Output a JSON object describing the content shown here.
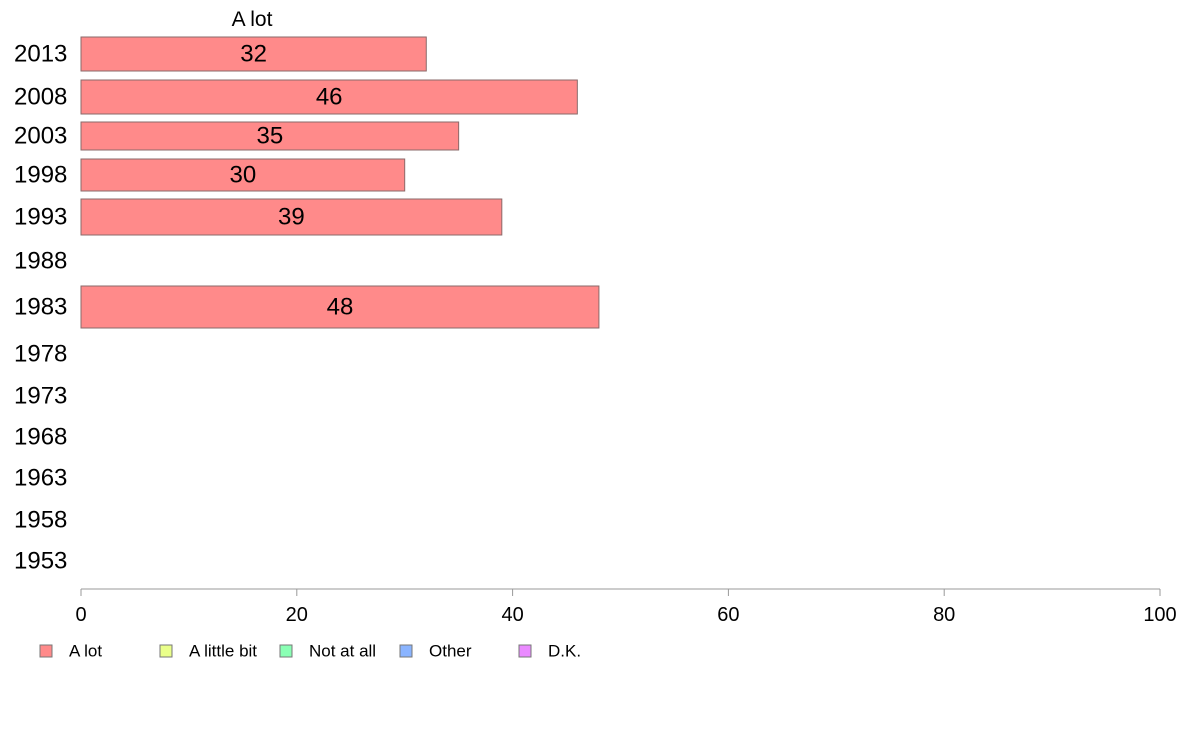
{
  "chart_data": {
    "type": "bar",
    "orientation": "horizontal",
    "column_title": "A lot",
    "categories": [
      "2013",
      "2008",
      "2003",
      "1998",
      "1993",
      "1988",
      "1983",
      "1978",
      "1973",
      "1968",
      "1963",
      "1958",
      "1953"
    ],
    "series": [
      {
        "name": "A lot",
        "values": [
          32,
          46,
          35,
          30,
          39,
          null,
          48,
          null,
          null,
          null,
          null,
          null,
          null
        ]
      }
    ],
    "xlim": [
      0,
      100
    ],
    "x_ticks": [
      0,
      20,
      40,
      60,
      80,
      100
    ],
    "legend": {
      "position": "bottom-left",
      "items": [
        {
          "label": "A lot",
          "color": "#ff8a8a"
        },
        {
          "label": "A little bit",
          "color": "#eaff8a"
        },
        {
          "label": "Not at all",
          "color": "#8affb4"
        },
        {
          "label": "Other",
          "color": "#8ab4ff"
        },
        {
          "label": "D.K.",
          "color": "#ea8aff"
        }
      ]
    },
    "grid": false,
    "colors": {
      "bar_fill": "#ff8a8a",
      "bar_stroke": "#8a6a6a",
      "axis": "#999999"
    }
  }
}
